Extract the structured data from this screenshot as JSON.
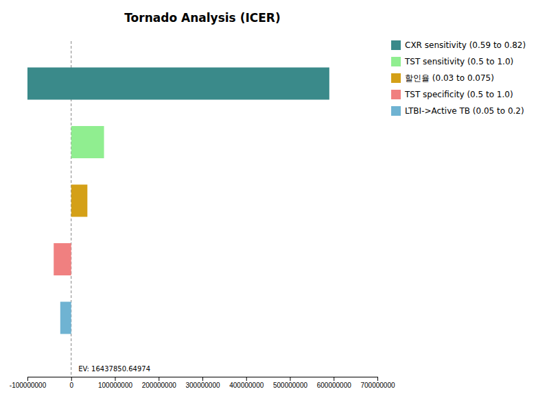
{
  "chart_data": {
    "type": "bar",
    "orientation": "horizontal",
    "title": "Tornado Analysis (ICER)",
    "categories": [
      "CXR sensitivity (0.59 to 0.82)",
      "TST sensitivity (0.5 to 1.0)",
      "할인율 (0.03 to 0.075)",
      "TST specificity (0.5 to 1.0)",
      "LTBI->Active TB (0.05 to 0.2)"
    ],
    "values": [
      690000000,
      75000000,
      37000000,
      40000000,
      25000000
    ],
    "base": [
      -100000000,
      0,
      0,
      -40000000,
      -25000000
    ],
    "colors": [
      "#3a8a8a",
      "#90ee90",
      "#d4a017",
      "#f08080",
      "#6fb3d2"
    ],
    "vlines": [
      0
    ],
    "annotations": [
      {
        "text": "EV: 16437850.64974",
        "x": 16437850.64974
      }
    ],
    "xlim": [
      -100000000,
      700000000
    ],
    "xticks": [
      -100000000,
      0,
      100000000,
      200000000,
      300000000,
      400000000,
      500000000,
      600000000,
      700000000
    ],
    "legend": "right",
    "tick_labels": "x",
    "grid": false
  }
}
